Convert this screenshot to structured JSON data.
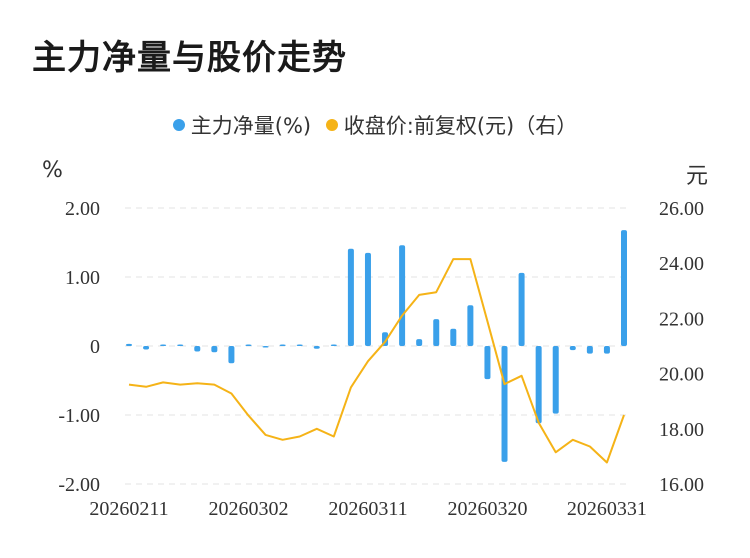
{
  "title": "主力净量与股价走势",
  "legend": [
    {
      "label": "主力净量(%)",
      "color": "#3aa0ea"
    },
    {
      "label": "收盘价:前复权(元)（右）",
      "color": "#f5b317"
    }
  ],
  "units": {
    "left": "%",
    "right": "元"
  },
  "chart_data": {
    "type": "bar+line",
    "x_tick_labels": [
      "20260211",
      "20260302",
      "20260311",
      "20260320",
      "20260331"
    ],
    "left_axis": {
      "ticks": [
        "2.00",
        "1.00",
        "0",
        "-1.00",
        "-2.00"
      ],
      "ylim": [
        -2,
        2
      ]
    },
    "right_axis": {
      "ticks": [
        "26.00",
        "24.00",
        "22.00",
        "20.00",
        "18.00",
        "16.00"
      ],
      "ylim": [
        16,
        26
      ]
    },
    "series": [
      {
        "name": "主力净量(%)",
        "type": "bar",
        "color": "#3aa0ea",
        "values": [
          0.03,
          -0.05,
          0.01,
          0.02,
          -0.08,
          -0.09,
          -0.25,
          0.01,
          -0.01,
          0.0,
          0.01,
          -0.04,
          0.0,
          1.41,
          1.35,
          0.2,
          1.46,
          0.1,
          0.39,
          0.25,
          0.59,
          -0.48,
          -1.68,
          1.06,
          -1.12,
          -0.98,
          -0.06,
          -0.11,
          -0.11,
          1.68
        ]
      },
      {
        "name": "收盘价:前复权(元)（右）",
        "type": "line",
        "color": "#f5b317",
        "values": [
          19.6,
          19.52,
          19.68,
          19.6,
          19.65,
          19.6,
          19.28,
          18.48,
          17.78,
          17.6,
          17.72,
          18.0,
          17.72,
          19.5,
          20.45,
          21.15,
          22.1,
          22.85,
          22.95,
          24.15,
          24.15,
          21.9,
          19.62,
          19.92,
          18.22,
          17.15,
          17.6,
          17.36,
          16.78,
          18.5
        ]
      }
    ]
  }
}
